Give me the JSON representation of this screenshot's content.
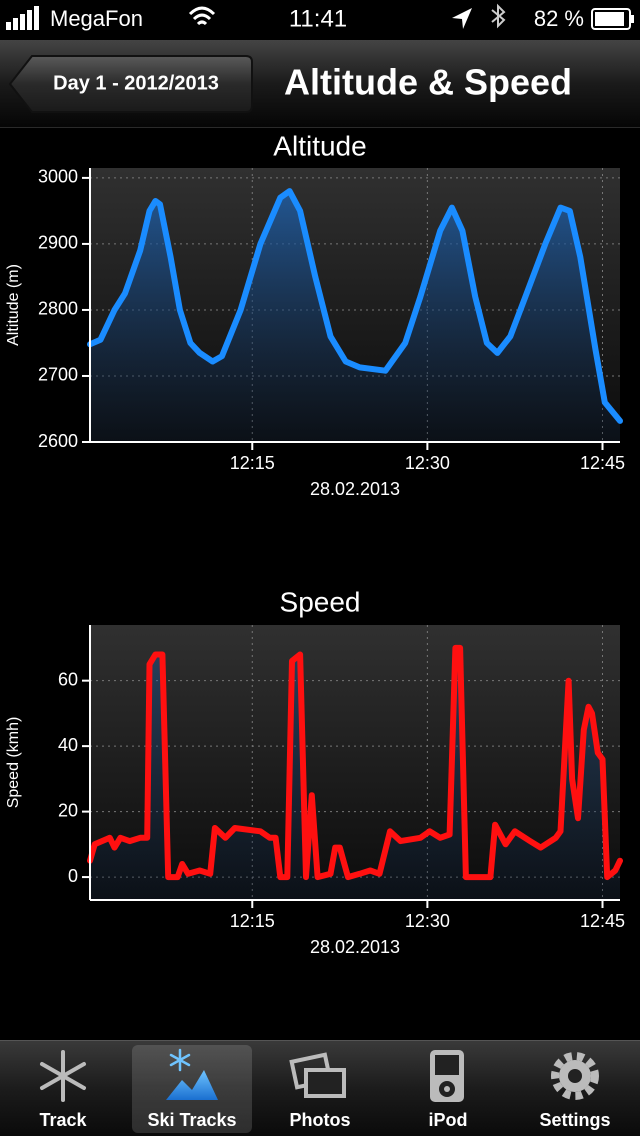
{
  "status_bar": {
    "carrier": "MegaFon",
    "time": "11:41",
    "battery": "82 %"
  },
  "nav_bar": {
    "back": "Day 1 - 2012/2013",
    "title": "Altitude & Speed"
  },
  "chart_data": [
    {
      "type": "line",
      "title": "Altitude",
      "y_label": "Altitude (m)",
      "x_label": "28.02.2013",
      "color": "#1a8cff",
      "grid": true,
      "xlim": [
        721.1,
        766.5
      ],
      "xticks": [
        {
          "value": 735,
          "label": "12:15"
        },
        {
          "value": 750,
          "label": "12:30"
        },
        {
          "value": 765,
          "label": "12:45"
        }
      ],
      "ylim": [
        2600,
        3015
      ],
      "yticks": [
        2600,
        2700,
        2800,
        2900,
        3000
      ],
      "x": [
        721.1,
        722.0,
        723.2,
        724.1,
        725.4,
        726.2,
        726.7,
        727.1,
        728.0,
        728.8,
        729.7,
        730.5,
        731.6,
        732.4,
        734.0,
        735.7,
        737.4,
        738.2,
        739.1,
        740.4,
        741.7,
        743.0,
        744.2,
        746.4,
        748.1,
        749.4,
        751.1,
        752.1,
        753.0,
        754.1,
        755.1,
        756.0,
        757.1,
        758.4,
        760.1,
        761.4,
        762.2,
        763.1,
        764.4,
        765.2,
        766.5
      ],
      "values": [
        2748,
        2755,
        2800,
        2825,
        2890,
        2950,
        2965,
        2960,
        2880,
        2800,
        2750,
        2735,
        2722,
        2730,
        2800,
        2900,
        2970,
        2980,
        2950,
        2850,
        2760,
        2722,
        2713,
        2708,
        2750,
        2820,
        2920,
        2955,
        2920,
        2820,
        2750,
        2735,
        2760,
        2820,
        2900,
        2955,
        2950,
        2880,
        2740,
        2660,
        2632
      ]
    },
    {
      "type": "line",
      "title": "Speed",
      "y_label": "Speed (kmh)",
      "x_label": "28.02.2013",
      "color": "#ff1010",
      "grid": true,
      "xlim": [
        721.1,
        766.5
      ],
      "xticks": [
        {
          "value": 735,
          "label": "12:15"
        },
        {
          "value": 750,
          "label": "12:30"
        },
        {
          "value": 765,
          "label": "12:45"
        }
      ],
      "ylim": [
        -7,
        77
      ],
      "yticks": [
        0,
        20,
        40,
        60
      ],
      "x": [
        721.1,
        721.5,
        722.8,
        723.2,
        723.7,
        724.5,
        725.4,
        726.0,
        726.2,
        726.7,
        727.3,
        727.8,
        728.6,
        729.0,
        729.5,
        730.5,
        731.4,
        731.8,
        732.7,
        733.5,
        735.7,
        736.5,
        737.0,
        737.4,
        738.0,
        738.4,
        739.1,
        739.6,
        740.1,
        740.6,
        741.7,
        742.1,
        742.5,
        743.2,
        744.2,
        745.1,
        745.9,
        746.8,
        747.7,
        749.4,
        750.2,
        751.1,
        751.9,
        752.4,
        752.8,
        753.3,
        755.4,
        755.8,
        756.7,
        757.5,
        758.8,
        759.7,
        761.0,
        761.4,
        762.1,
        762.4,
        762.9,
        763.4,
        763.8,
        764.1,
        764.6,
        765.0,
        765.4,
        766.1,
        766.5
      ],
      "values": [
        5,
        10,
        12,
        9,
        12,
        11,
        12,
        12,
        65,
        68,
        68,
        0,
        0,
        4,
        1,
        2,
        1,
        15,
        12,
        15,
        14,
        12,
        12,
        0,
        0,
        66,
        68,
        0,
        25,
        0,
        1,
        9,
        9,
        0,
        1,
        2,
        1,
        14,
        11,
        12,
        14,
        12,
        13,
        70,
        70,
        0,
        0,
        16,
        10,
        14,
        11,
        9,
        12,
        14,
        60,
        30,
        18,
        45,
        52,
        50,
        38,
        36,
        0,
        2,
        5
      ]
    }
  ],
  "tab_bar": {
    "items": [
      "Track",
      "Ski Tracks",
      "Photos",
      "iPod",
      "Settings"
    ],
    "selected": 1
  }
}
